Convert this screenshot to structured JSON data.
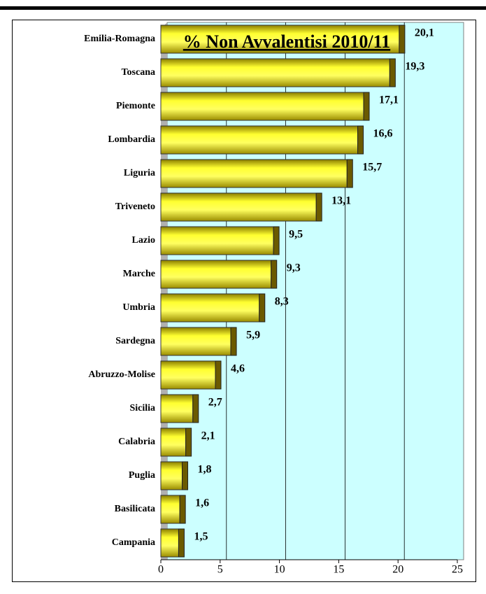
{
  "chart_data": {
    "type": "hbar",
    "title": "% Non Avvalentisi 2010/11",
    "categories": [
      "Emilia-Romagna",
      "Toscana",
      "Piemonte",
      "Lombardia",
      "Liguria",
      "Triveneto",
      "Lazio",
      "Marche",
      "Umbria",
      "Sardegna",
      "Abruzzo-Molise",
      "Sicilia",
      "Calabria",
      "Puglia",
      "Basilicata",
      "Campania"
    ],
    "values": [
      20.1,
      19.3,
      17.1,
      16.6,
      15.7,
      13.1,
      9.5,
      9.3,
      8.3,
      5.9,
      4.6,
      2.7,
      2.1,
      1.8,
      1.6,
      1.5
    ],
    "value_labels": [
      "20,1",
      "19,3",
      "17,1",
      "16,6",
      "15,7",
      "13,1",
      "9,5",
      "9,3",
      "8,3",
      "5,9",
      "4,6",
      "2,7",
      "2,1",
      "1,8",
      "1,6",
      "1,5"
    ],
    "color": "#ffff00",
    "xlim": [
      0,
      25
    ],
    "xticks": [
      0,
      5,
      10,
      15,
      20,
      25
    ],
    "grid": true
  }
}
